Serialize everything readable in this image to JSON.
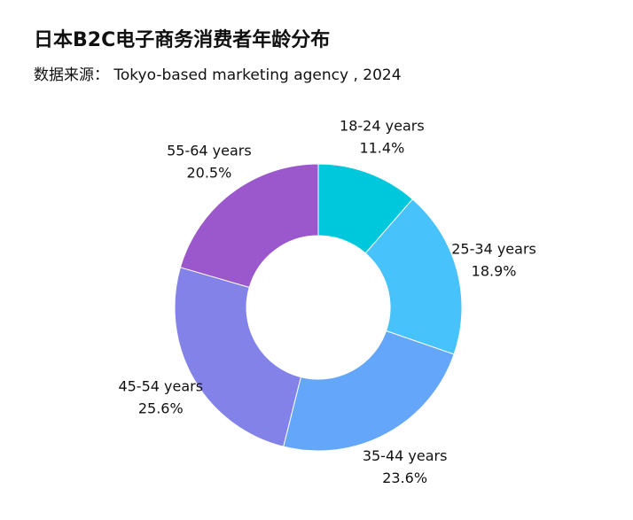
{
  "chart_data": {
    "type": "donut",
    "title": "日本B2C电子商务消费者年龄分布",
    "subtitle": "数据来源： Tokyo-based marketing agency , 2024",
    "categories": [
      "18-24 years",
      "25-34 years",
      "35-44 years",
      "45-54 years",
      "55-64 years"
    ],
    "values": [
      11.4,
      18.9,
      23.6,
      25.6,
      20.5
    ],
    "value_labels": [
      "11.4%",
      "18.9%",
      "23.6%",
      "25.6%",
      "20.5%"
    ],
    "colors": [
      "#00c8dc",
      "#48c2fa",
      "#64a6fa",
      "#8282e8",
      "#9a58cc"
    ]
  }
}
